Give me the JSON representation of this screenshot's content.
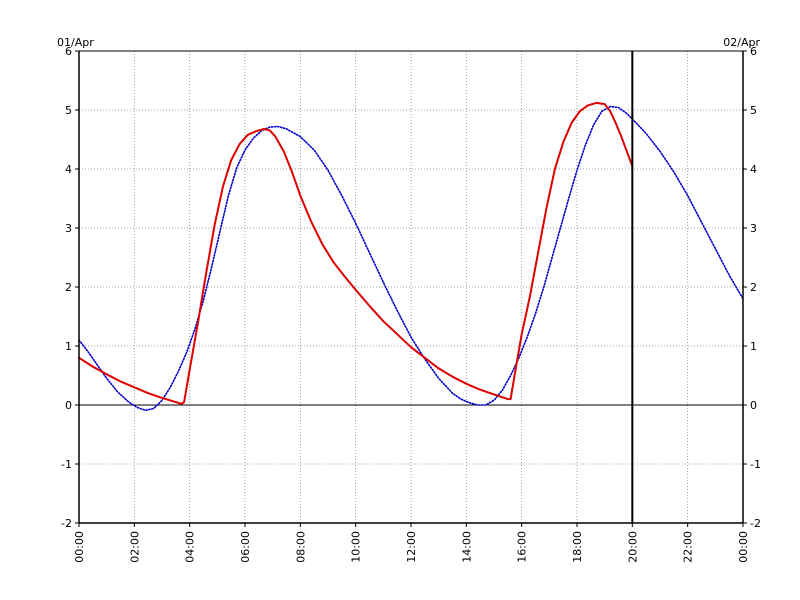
{
  "chart_data": {
    "type": "line",
    "title": "",
    "xlabel": "",
    "ylabel": "",
    "x_unit": "hours",
    "xlim": [
      0,
      24
    ],
    "ylim": [
      -2,
      6
    ],
    "yticks": [
      -2,
      -1,
      0,
      1,
      2,
      3,
      4,
      5,
      6
    ],
    "xticks": [
      {
        "x": 0,
        "label": "00:00"
      },
      {
        "x": 2,
        "label": "02:00"
      },
      {
        "x": 4,
        "label": "04:00"
      },
      {
        "x": 6,
        "label": "06:00"
      },
      {
        "x": 8,
        "label": "08:00"
      },
      {
        "x": 10,
        "label": "10:00"
      },
      {
        "x": 12,
        "label": "12:00"
      },
      {
        "x": 14,
        "label": "14:00"
      },
      {
        "x": 16,
        "label": "16:00"
      },
      {
        "x": 18,
        "label": "18:00"
      },
      {
        "x": 20,
        "label": "20:00"
      },
      {
        "x": 22,
        "label": "22:00"
      },
      {
        "x": 24,
        "label": "00:00"
      }
    ],
    "date_left": "01/Apr",
    "date_right": "02/Apr",
    "grid": true,
    "zero_line": 0,
    "now_marker_x": 20,
    "series": [
      {
        "color": "#0000cc",
        "style": "dotted",
        "x": [
          0,
          0.3,
          0.6,
          1.0,
          1.4,
          1.8,
          2.1,
          2.4,
          2.7,
          3.0,
          3.3,
          3.6,
          3.9,
          4.2,
          4.5,
          4.8,
          5.1,
          5.4,
          5.7,
          6.0,
          6.3,
          6.6,
          6.9,
          7.2,
          7.5,
          8.0,
          8.5,
          9.0,
          9.5,
          10.0,
          10.5,
          11.0,
          11.5,
          12.0,
          12.5,
          13.0,
          13.5,
          13.8,
          14.1,
          14.4,
          14.7,
          15.0,
          15.3,
          15.6,
          15.9,
          16.2,
          16.5,
          16.8,
          17.1,
          17.4,
          17.7,
          18.0,
          18.3,
          18.6,
          18.9,
          19.2,
          19.5,
          19.8,
          20.1,
          20.5,
          21.0,
          21.5,
          22.0,
          22.5,
          23.0,
          23.5,
          24.0
        ],
        "y": [
          1.1,
          0.92,
          0.72,
          0.45,
          0.22,
          0.05,
          -0.04,
          -0.09,
          -0.06,
          0.08,
          0.3,
          0.58,
          0.9,
          1.3,
          1.78,
          2.35,
          2.95,
          3.55,
          4.02,
          4.32,
          4.52,
          4.65,
          4.71,
          4.72,
          4.68,
          4.55,
          4.32,
          3.98,
          3.55,
          3.08,
          2.58,
          2.08,
          1.6,
          1.15,
          0.78,
          0.45,
          0.2,
          0.1,
          0.04,
          0.0,
          0.0,
          0.08,
          0.25,
          0.5,
          0.8,
          1.15,
          1.55,
          2.0,
          2.5,
          3.0,
          3.5,
          3.98,
          4.4,
          4.75,
          4.98,
          5.06,
          5.04,
          4.94,
          4.8,
          4.6,
          4.3,
          3.95,
          3.55,
          3.1,
          2.65,
          2.2,
          1.8
        ]
      },
      {
        "color": "#dd0000",
        "style": "solid",
        "x": [
          0,
          0.5,
          1.0,
          1.5,
          2.0,
          2.5,
          3.0,
          3.5,
          3.7,
          3.8,
          4.0,
          4.3,
          4.6,
          4.9,
          5.2,
          5.5,
          5.8,
          6.1,
          6.4,
          6.7,
          6.9,
          7.1,
          7.4,
          7.7,
          8.0,
          8.4,
          8.8,
          9.2,
          9.6,
          10.0,
          10.5,
          11.0,
          11.5,
          12.0,
          12.5,
          13.0,
          13.5,
          14.0,
          14.5,
          15.0,
          15.5,
          15.6,
          15.8,
          16.0,
          16.3,
          16.6,
          16.9,
          17.2,
          17.5,
          17.8,
          18.1,
          18.4,
          18.7,
          19.0,
          19.2,
          19.4,
          19.6,
          19.8,
          20.0
        ],
        "y": [
          0.8,
          0.65,
          0.52,
          0.4,
          0.3,
          0.2,
          0.12,
          0.05,
          0.02,
          0.05,
          0.6,
          1.4,
          2.25,
          3.05,
          3.7,
          4.15,
          4.42,
          4.58,
          4.64,
          4.68,
          4.65,
          4.55,
          4.3,
          3.95,
          3.55,
          3.1,
          2.72,
          2.42,
          2.18,
          1.95,
          1.68,
          1.42,
          1.2,
          0.98,
          0.8,
          0.62,
          0.48,
          0.36,
          0.26,
          0.18,
          0.1,
          0.1,
          0.65,
          1.2,
          1.85,
          2.6,
          3.35,
          4.0,
          4.45,
          4.78,
          4.98,
          5.08,
          5.12,
          5.1,
          4.98,
          4.78,
          4.55,
          4.3,
          4.05
        ]
      }
    ]
  }
}
